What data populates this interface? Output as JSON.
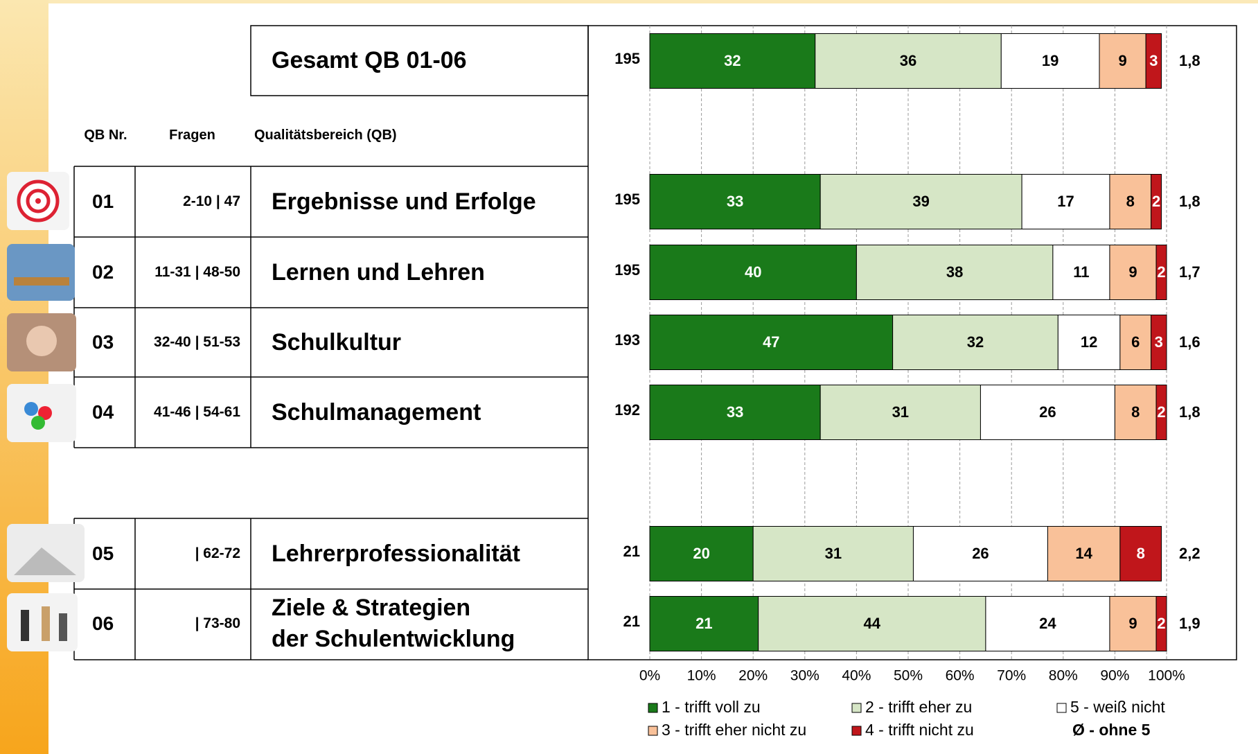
{
  "chart_data": {
    "type": "bar",
    "orientation": "horizontal",
    "stacked": true,
    "columns": [
      "QB Nr.",
      "Fragen",
      "Qualitätsbereich (QB)"
    ],
    "qb_numbers": [
      null,
      "01",
      "02",
      "03",
      "04",
      "05",
      "06"
    ],
    "questions": [
      null,
      "2-10 | 47",
      "11-31 | 48-50",
      "32-40 | 51-53",
      "41-46 | 54-61",
      "| 62-72",
      "| 73-80"
    ],
    "categories": [
      "Gesamt QB 01-06",
      "Ergebnisse und Erfolge",
      "Lernen und Lehren",
      "Schulkultur",
      "Schulmanagement",
      "Lehrerprofessionalität",
      "Ziele & Strategien\nder Schulentwicklung"
    ],
    "n": [
      195,
      195,
      195,
      193,
      192,
      21,
      21
    ],
    "means": [
      "1,8",
      "1,8",
      "1,7",
      "1,6",
      "1,8",
      "2,2",
      "1,9"
    ],
    "series": [
      {
        "name": "1 - trifft voll zu",
        "color": "#1a7a1a",
        "values": [
          32,
          33,
          40,
          47,
          33,
          20,
          21
        ]
      },
      {
        "name": "2 - trifft eher zu",
        "color": "#d6e6c6",
        "values": [
          36,
          39,
          38,
          32,
          31,
          31,
          44
        ]
      },
      {
        "name": "5 - weiß nicht",
        "color": "#ffffff",
        "values": [
          19,
          17,
          11,
          12,
          26,
          26,
          24
        ]
      },
      {
        "name": "3 - trifft eher nicht zu",
        "color": "#f9c199",
        "values": [
          9,
          8,
          9,
          6,
          8,
          14,
          9
        ]
      },
      {
        "name": "4 - trifft nicht zu",
        "color": "#c0161b",
        "values": [
          3,
          2,
          2,
          3,
          2,
          8,
          2
        ]
      }
    ],
    "legend_note": "Ø - ohne 5",
    "xlim": [
      0,
      100
    ],
    "xticks": [
      {
        "value": 0,
        "label": "0%"
      },
      {
        "value": 10,
        "label": "10%"
      },
      {
        "value": 20,
        "label": "20%"
      },
      {
        "value": 30,
        "label": "30%"
      },
      {
        "value": 40,
        "label": "40%"
      },
      {
        "value": 50,
        "label": "50%"
      },
      {
        "value": 60,
        "label": "60%"
      },
      {
        "value": 70,
        "label": "70%"
      },
      {
        "value": 80,
        "label": "80%"
      },
      {
        "value": 90,
        "label": "90%"
      },
      {
        "value": 100,
        "label": "100%"
      }
    ],
    "grid": true
  }
}
